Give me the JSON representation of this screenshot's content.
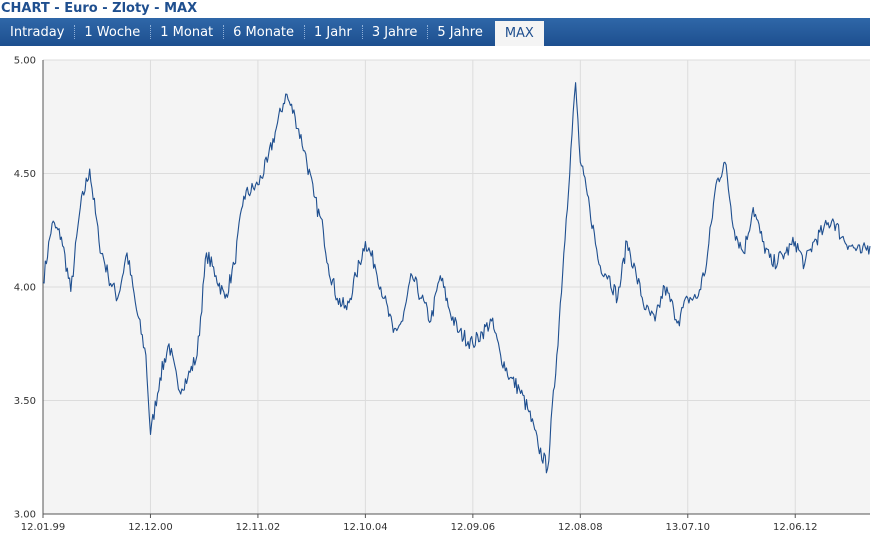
{
  "title": "CHART - Euro - Zloty - MAX",
  "tabs": [
    {
      "label": "Intraday",
      "active": false
    },
    {
      "label": "1 Woche",
      "active": false
    },
    {
      "label": "1 Monat",
      "active": false
    },
    {
      "label": "6 Monate",
      "active": false
    },
    {
      "label": "1 Jahr",
      "active": false
    },
    {
      "label": "3 Jahre",
      "active": false
    },
    {
      "label": "5 Jahre",
      "active": false
    },
    {
      "label": "MAX",
      "active": true
    }
  ],
  "colors": {
    "accent": "#1f4f8f",
    "tab_bar": "#2a5f9e",
    "plot_bg": "#f4f4f4"
  },
  "chart_data": {
    "type": "line",
    "title": "",
    "xlabel": "",
    "ylabel": "",
    "ylim": [
      3.0,
      5.0
    ],
    "yticks": [
      "3.00",
      "3.50",
      "4.00",
      "4.50",
      "5.00"
    ],
    "xticks": [
      "12.01.99",
      "12.12.00",
      "12.11.02",
      "12.10.04",
      "12.09.06",
      "12.08.08",
      "13.07.10",
      "12.06.12"
    ],
    "grid": true,
    "series": [
      {
        "x": [
          "12.01.99",
          "12.03.99",
          "12.05.99",
          "12.07.99",
          "12.09.99",
          "12.11.99",
          "12.01.00",
          "12.03.00",
          "12.05.00",
          "12.07.00",
          "12.09.00",
          "12.11.00",
          "12.12.00",
          "12.02.01",
          "12.04.01",
          "12.06.01",
          "12.08.01",
          "12.10.01",
          "12.12.01",
          "12.02.02",
          "12.04.02",
          "12.06.02",
          "12.08.02",
          "12.11.02",
          "12.01.03",
          "12.03.03",
          "12.05.03",
          "12.07.03",
          "12.09.03",
          "12.11.03",
          "12.01.04",
          "12.02.04",
          "12.04.04",
          "12.06.04",
          "12.08.04",
          "12.10.04",
          "12.12.04",
          "12.02.05",
          "12.04.05",
          "12.06.05",
          "12.08.05",
          "12.10.05",
          "12.12.05",
          "12.02.06",
          "12.04.06",
          "12.06.06",
          "12.09.06",
          "12.11.06",
          "12.01.07",
          "12.03.07",
          "12.05.07",
          "12.07.07",
          "12.09.07",
          "12.11.07",
          "12.01.08",
          "12.03.08",
          "12.05.08",
          "12.07.08",
          "12.08.08",
          "12.10.08",
          "12.12.08",
          "12.02.09",
          "12.04.09",
          "12.06.09",
          "12.08.09",
          "12.10.09",
          "12.12.09",
          "12.02.10",
          "12.04.10",
          "12.05.10",
          "13.07.10",
          "12.09.10",
          "12.11.10",
          "12.01.11",
          "12.03.11",
          "12.05.11",
          "12.07.11",
          "12.09.11",
          "12.11.11",
          "12.01.12",
          "12.04.12",
          "12.06.12",
          "12.08.12",
          "12.10.12",
          "12.12.12",
          "12.02.13",
          "12.04.13",
          "12.06.13",
          "12.08.13",
          "12.10.13"
        ],
        "values": [
          4.02,
          4.28,
          4.22,
          3.98,
          4.35,
          4.52,
          4.2,
          4.05,
          3.95,
          4.15,
          3.9,
          3.7,
          3.35,
          3.6,
          3.75,
          3.55,
          3.6,
          3.7,
          4.15,
          4.05,
          3.95,
          4.1,
          4.4,
          4.45,
          4.55,
          4.7,
          4.85,
          4.75,
          4.6,
          4.4,
          4.25,
          4.1,
          3.95,
          3.9,
          4.05,
          4.2,
          4.1,
          3.95,
          3.8,
          3.85,
          4.05,
          3.95,
          3.85,
          4.05,
          3.9,
          3.8,
          3.75,
          3.8,
          3.85,
          3.7,
          3.6,
          3.55,
          3.45,
          3.3,
          3.2,
          3.7,
          4.3,
          4.9,
          4.55,
          4.35,
          4.1,
          4.05,
          3.95,
          4.2,
          4.05,
          3.9,
          3.85,
          4.0,
          3.9,
          3.85,
          3.95,
          3.95,
          4.1,
          4.45,
          4.55,
          4.25,
          4.15,
          4.35,
          4.2,
          4.1,
          4.15,
          4.2,
          4.1,
          4.2,
          4.25,
          4.3,
          4.22,
          4.18,
          4.15,
          4.18
        ]
      }
    ]
  }
}
